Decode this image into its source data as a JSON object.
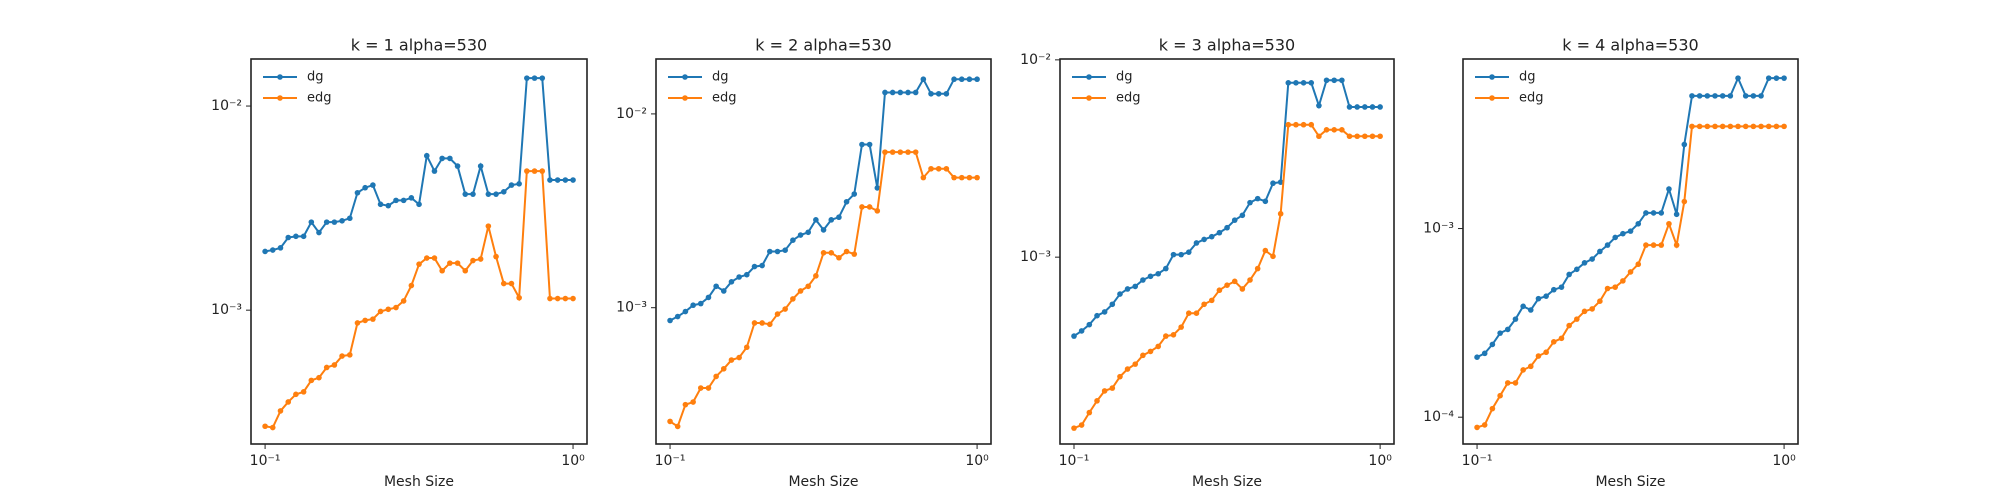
{
  "chart_data": [
    {
      "type": "line",
      "title": "k = 1 alpha=530",
      "xlabel": "Mesh Size",
      "xscale": "log",
      "yscale": "log",
      "legend": "upper left",
      "x": [
        0.1,
        0.1059,
        0.1122,
        0.1189,
        0.1259,
        0.1334,
        0.1413,
        0.1496,
        0.1585,
        0.1679,
        0.1778,
        0.1884,
        0.1995,
        0.2113,
        0.2239,
        0.2371,
        0.2512,
        0.2661,
        0.2818,
        0.2985,
        0.3162,
        0.335,
        0.3548,
        0.3758,
        0.3981,
        0.4217,
        0.4467,
        0.4732,
        0.5012,
        0.5309,
        0.5623,
        0.5957,
        0.631,
        0.6683,
        0.7079,
        0.7499,
        0.7943,
        0.8414,
        0.8913,
        0.9441,
        1.0
      ],
      "series": [
        {
          "name": "dg",
          "color": "#1f77b4",
          "values": [
            0.00194,
            0.00197,
            0.00202,
            0.00227,
            0.0023,
            0.0023,
            0.0027,
            0.0024,
            0.0027,
            0.0027,
            0.00274,
            0.00282,
            0.00376,
            0.00398,
            0.0041,
            0.0033,
            0.00325,
            0.00345,
            0.00345,
            0.00355,
            0.0033,
            0.00571,
            0.0048,
            0.00554,
            0.00554,
            0.00508,
            0.0037,
            0.0037,
            0.00508,
            0.0037,
            0.0037,
            0.0038,
            0.0041,
            0.00416,
            0.0137,
            0.0137,
            0.0137,
            0.00434,
            0.00434,
            0.00434,
            0.00434
          ]
        },
        {
          "name": "edg",
          "color": "#ff7f0e",
          "values": [
            0.00027,
            0.000266,
            0.000321,
            0.000355,
            0.000387,
            0.000398,
            0.000453,
            0.000467,
            0.000524,
            0.000539,
            0.000596,
            0.000604,
            0.000866,
            0.000891,
            0.000904,
            0.000986,
            0.00101,
            0.00103,
            0.00111,
            0.00132,
            0.00168,
            0.0018,
            0.0018,
            0.00156,
            0.0017,
            0.0017,
            0.00156,
            0.00175,
            0.00178,
            0.00258,
            0.00183,
            0.00135,
            0.00135,
            0.00115,
            0.0048,
            0.0048,
            0.0048,
            0.00114,
            0.00114,
            0.00114,
            0.00114
          ]
        }
      ],
      "xlim": [
        0.09,
        1.11
      ],
      "ylim": [
        0.000221,
        0.017
      ],
      "xticks": [
        {
          "value": 0.1,
          "label": "10⁻¹"
        },
        {
          "value": 1,
          "label": "10⁰"
        }
      ],
      "yticks": [
        {
          "value": 0.001,
          "label": "10⁻³"
        },
        {
          "value": 0.01,
          "label": "10⁻²"
        }
      ]
    },
    {
      "type": "line",
      "title": "k = 2 alpha=530",
      "xlabel": "Mesh Size",
      "xscale": "log",
      "yscale": "log",
      "legend": "upper left",
      "x": [
        0.1,
        0.1059,
        0.1122,
        0.1189,
        0.1259,
        0.1334,
        0.1413,
        0.1496,
        0.1585,
        0.1679,
        0.1778,
        0.1884,
        0.1995,
        0.2113,
        0.2239,
        0.2371,
        0.2512,
        0.2661,
        0.2818,
        0.2985,
        0.3162,
        0.335,
        0.3548,
        0.3758,
        0.3981,
        0.4217,
        0.4467,
        0.4732,
        0.5012,
        0.5309,
        0.5623,
        0.5957,
        0.631,
        0.6683,
        0.7079,
        0.7499,
        0.7943,
        0.8414,
        0.8913,
        0.9441,
        1.0
      ],
      "series": [
        {
          "name": "dg",
          "color": "#1f77b4",
          "values": [
            0.000859,
            0.0009,
            0.000955,
            0.00103,
            0.00105,
            0.00113,
            0.00129,
            0.00122,
            0.00136,
            0.00144,
            0.00148,
            0.00163,
            0.00165,
            0.00195,
            0.00195,
            0.00198,
            0.00223,
            0.00237,
            0.00245,
            0.00284,
            0.00252,
            0.00284,
            0.00293,
            0.00352,
            0.00386,
            0.00695,
            0.00695,
            0.00415,
            0.0129,
            0.0129,
            0.0129,
            0.0129,
            0.0129,
            0.0151,
            0.0127,
            0.0127,
            0.0127,
            0.0151,
            0.0151,
            0.0151,
            0.0151
          ]
        },
        {
          "name": "edg",
          "color": "#ff7f0e",
          "values": [
            0.000259,
            0.000244,
            0.000316,
            0.000326,
            0.000385,
            0.000385,
            0.000442,
            0.000484,
            0.000537,
            0.000553,
            0.000625,
            0.000834,
            0.000834,
            0.000821,
            0.000927,
            0.000984,
            0.00111,
            0.00122,
            0.00129,
            0.00146,
            0.00192,
            0.00192,
            0.00181,
            0.00195,
            0.00189,
            0.00331,
            0.00331,
            0.00316,
            0.00635,
            0.00635,
            0.00635,
            0.00635,
            0.00635,
            0.00469,
            0.00521,
            0.00521,
            0.00521,
            0.00469,
            0.00469,
            0.00469,
            0.00469
          ]
        }
      ],
      "xlim": [
        0.09,
        1.11
      ],
      "ylim": [
        0.000198,
        0.0192
      ],
      "xticks": [
        {
          "value": 0.1,
          "label": "10⁻¹"
        },
        {
          "value": 1,
          "label": "10⁰"
        }
      ],
      "yticks": [
        {
          "value": 0.001,
          "label": "10⁻³"
        },
        {
          "value": 0.01,
          "label": "10⁻²"
        }
      ]
    },
    {
      "type": "line",
      "title": "k = 3 alpha=530",
      "xlabel": "Mesh Size",
      "xscale": "log",
      "yscale": "log",
      "legend": "upper left",
      "x": [
        0.1,
        0.1059,
        0.1122,
        0.1189,
        0.1259,
        0.1334,
        0.1413,
        0.1496,
        0.1585,
        0.1679,
        0.1778,
        0.1884,
        0.1995,
        0.2113,
        0.2239,
        0.2371,
        0.2512,
        0.2661,
        0.2818,
        0.2985,
        0.3162,
        0.335,
        0.3548,
        0.3758,
        0.3981,
        0.4217,
        0.4467,
        0.4732,
        0.5012,
        0.5309,
        0.5623,
        0.5957,
        0.631,
        0.6683,
        0.7079,
        0.7499,
        0.7943,
        0.8414,
        0.8913,
        0.9441,
        1.0
      ],
      "series": [
        {
          "name": "dg",
          "color": "#1f77b4",
          "values": [
            0.000398,
            0.000423,
            0.000455,
            0.000505,
            0.000528,
            0.000577,
            0.00065,
            0.00069,
            0.000711,
            0.000766,
            0.0008,
            0.000824,
            0.000875,
            0.00103,
            0.00103,
            0.00106,
            0.00118,
            0.00123,
            0.00127,
            0.00133,
            0.00141,
            0.00154,
            0.00163,
            0.00189,
            0.00198,
            0.00192,
            0.00237,
            0.0024,
            0.00765,
            0.00765,
            0.00765,
            0.00765,
            0.00586,
            0.00788,
            0.00788,
            0.00788,
            0.00577,
            0.00577,
            0.00577,
            0.00577,
            0.00577
          ]
        },
        {
          "name": "edg",
          "color": "#ff7f0e",
          "values": [
            0.000136,
            0.000141,
            0.000163,
            0.000187,
            0.00021,
            0.000217,
            0.000248,
            0.000271,
            0.000287,
            0.000318,
            0.000333,
            0.000353,
            0.000398,
            0.000404,
            0.000442,
            0.00052,
            0.00052,
            0.000577,
            0.000604,
            0.00068,
            0.000721,
            0.000754,
            0.00069,
            0.000766,
            0.000875,
            0.00108,
            0.00101,
            0.00166,
            0.00469,
            0.00469,
            0.00469,
            0.00469,
            0.0041,
            0.00442,
            0.00442,
            0.00442,
            0.0041,
            0.0041,
            0.0041,
            0.0041,
            0.0041
          ]
        }
      ],
      "xlim": [
        0.09,
        1.11
      ],
      "ylim": [
        0.000113,
        0.0101
      ],
      "xticks": [
        {
          "value": 0.1,
          "label": "10⁻¹"
        },
        {
          "value": 1,
          "label": "10⁰"
        }
      ],
      "yticks": [
        {
          "value": 0.001,
          "label": "10⁻³"
        },
        {
          "value": 0.01,
          "label": "10⁻²"
        }
      ]
    },
    {
      "type": "line",
      "title": "k = 4 alpha=530",
      "xlabel": "Mesh Size",
      "xscale": "log",
      "yscale": "log",
      "legend": "upper left",
      "x": [
        0.1,
        0.1059,
        0.1122,
        0.1189,
        0.1259,
        0.1334,
        0.1413,
        0.1496,
        0.1585,
        0.1679,
        0.1778,
        0.1884,
        0.1995,
        0.2113,
        0.2239,
        0.2371,
        0.2512,
        0.2661,
        0.2818,
        0.2985,
        0.3162,
        0.335,
        0.3548,
        0.3758,
        0.3981,
        0.4217,
        0.4467,
        0.4732,
        0.5012,
        0.5309,
        0.5623,
        0.5957,
        0.631,
        0.6683,
        0.7079,
        0.7499,
        0.7943,
        0.8414,
        0.8913,
        0.9441,
        1.0
      ],
      "series": [
        {
          "name": "dg",
          "color": "#1f77b4",
          "values": [
            0.000208,
            0.000218,
            0.000243,
            0.000279,
            0.000292,
            0.000331,
            0.000387,
            0.00037,
            0.000425,
            0.000438,
            0.000474,
            0.000489,
            0.000571,
            0.000608,
            0.000658,
            0.000689,
            0.000756,
            0.000817,
            0.000897,
            0.000939,
            0.000969,
            0.00106,
            0.00121,
            0.00121,
            0.00121,
            0.00162,
            0.00119,
            0.00279,
            0.00505,
            0.00505,
            0.00505,
            0.00505,
            0.00505,
            0.00505,
            0.00627,
            0.00505,
            0.00505,
            0.00505,
            0.00627,
            0.00627,
            0.00627
          ]
        },
        {
          "name": "edg",
          "color": "#ff7f0e",
          "values": [
            8.83e-05,
            9.1e-05,
            0.000111,
            0.00013,
            0.000152,
            0.000152,
            0.000178,
            0.000186,
            0.000211,
            0.000221,
            0.000251,
            0.000262,
            0.000306,
            0.000331,
            0.000364,
            0.000375,
            0.000412,
            0.000481,
            0.000489,
            0.000528,
            0.000589,
            0.000647,
            0.000817,
            0.000817,
            0.000817,
            0.00106,
            0.000817,
            0.00139,
            0.00348,
            0.00348,
            0.00348,
            0.00348,
            0.00348,
            0.00348,
            0.00348,
            0.00348,
            0.00348,
            0.00348,
            0.00348,
            0.00348,
            0.00348
          ]
        }
      ],
      "xlim": [
        0.09,
        1.11
      ],
      "ylim": [
        7.21e-05,
        0.00792
      ],
      "xticks": [
        {
          "value": 0.1,
          "label": "10⁻¹"
        },
        {
          "value": 1,
          "label": "10⁰"
        }
      ],
      "yticks": [
        {
          "value": 0.0001,
          "label": "10⁻⁴"
        },
        {
          "value": 0.001,
          "label": "10⁻³"
        }
      ]
    }
  ]
}
